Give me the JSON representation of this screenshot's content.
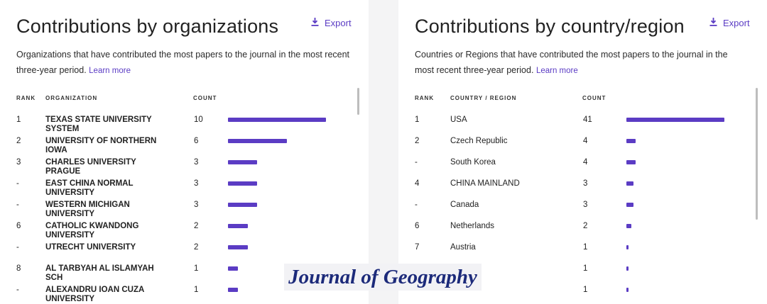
{
  "left": {
    "title": "Contributions by organizations",
    "export_label": "Export",
    "description": "Organizations that have contributed the most papers to the journal in the most recent three-year period.",
    "learn_more": "Learn more",
    "headers": {
      "rank": "RANK",
      "name": "ORGANIZATION",
      "count": "COUNT"
    },
    "max_count": 10,
    "rows": [
      {
        "rank": "1",
        "name": "TEXAS STATE UNIVERSITY SYSTEM",
        "count": 10
      },
      {
        "rank": "2",
        "name": "UNIVERSITY OF NORTHERN IOWA",
        "count": 6
      },
      {
        "rank": "3",
        "name": "CHARLES UNIVERSITY PRAGUE",
        "count": 3
      },
      {
        "rank": "-",
        "name": "EAST CHINA NORMAL UNIVERSITY",
        "count": 3
      },
      {
        "rank": "-",
        "name": "WESTERN MICHIGAN UNIVERSITY",
        "count": 3
      },
      {
        "rank": "6",
        "name": "CATHOLIC KWANDONG UNIVERSITY",
        "count": 2
      },
      {
        "rank": "-",
        "name": "UTRECHT UNIVERSITY",
        "count": 2
      },
      {
        "rank": "8",
        "name": "AL TARBYAH AL ISLAMYAH SCH",
        "count": 1
      },
      {
        "rank": "-",
        "name": "ALEXANDRU IOAN CUZA UNIVERSITY",
        "count": 1
      }
    ]
  },
  "right": {
    "title": "Contributions by country/region",
    "export_label": "Export",
    "description": "Countries or Regions that have contributed the most papers to the journal in the most recent three-year period.",
    "learn_more": "Learn more",
    "headers": {
      "rank": "RANK",
      "name": "COUNTRY / REGION",
      "count": "COUNT"
    },
    "max_count": 41,
    "rows": [
      {
        "rank": "1",
        "name": "USA",
        "count": 41
      },
      {
        "rank": "2",
        "name": "Czech Republic",
        "count": 4
      },
      {
        "rank": "-",
        "name": "South Korea",
        "count": 4
      },
      {
        "rank": "4",
        "name": "CHINA MAINLAND",
        "count": 3
      },
      {
        "rank": "-",
        "name": "Canada",
        "count": 3
      },
      {
        "rank": "6",
        "name": "Netherlands",
        "count": 2
      },
      {
        "rank": "7",
        "name": "Austria",
        "count": 1
      },
      {
        "rank": "",
        "name": "",
        "count": 1
      },
      {
        "rank": "",
        "name": "",
        "count": 1
      }
    ]
  },
  "watermark": "Journal of Geography",
  "colors": {
    "accent": "#5b3cc4",
    "watermark": "#1c2a7a"
  }
}
